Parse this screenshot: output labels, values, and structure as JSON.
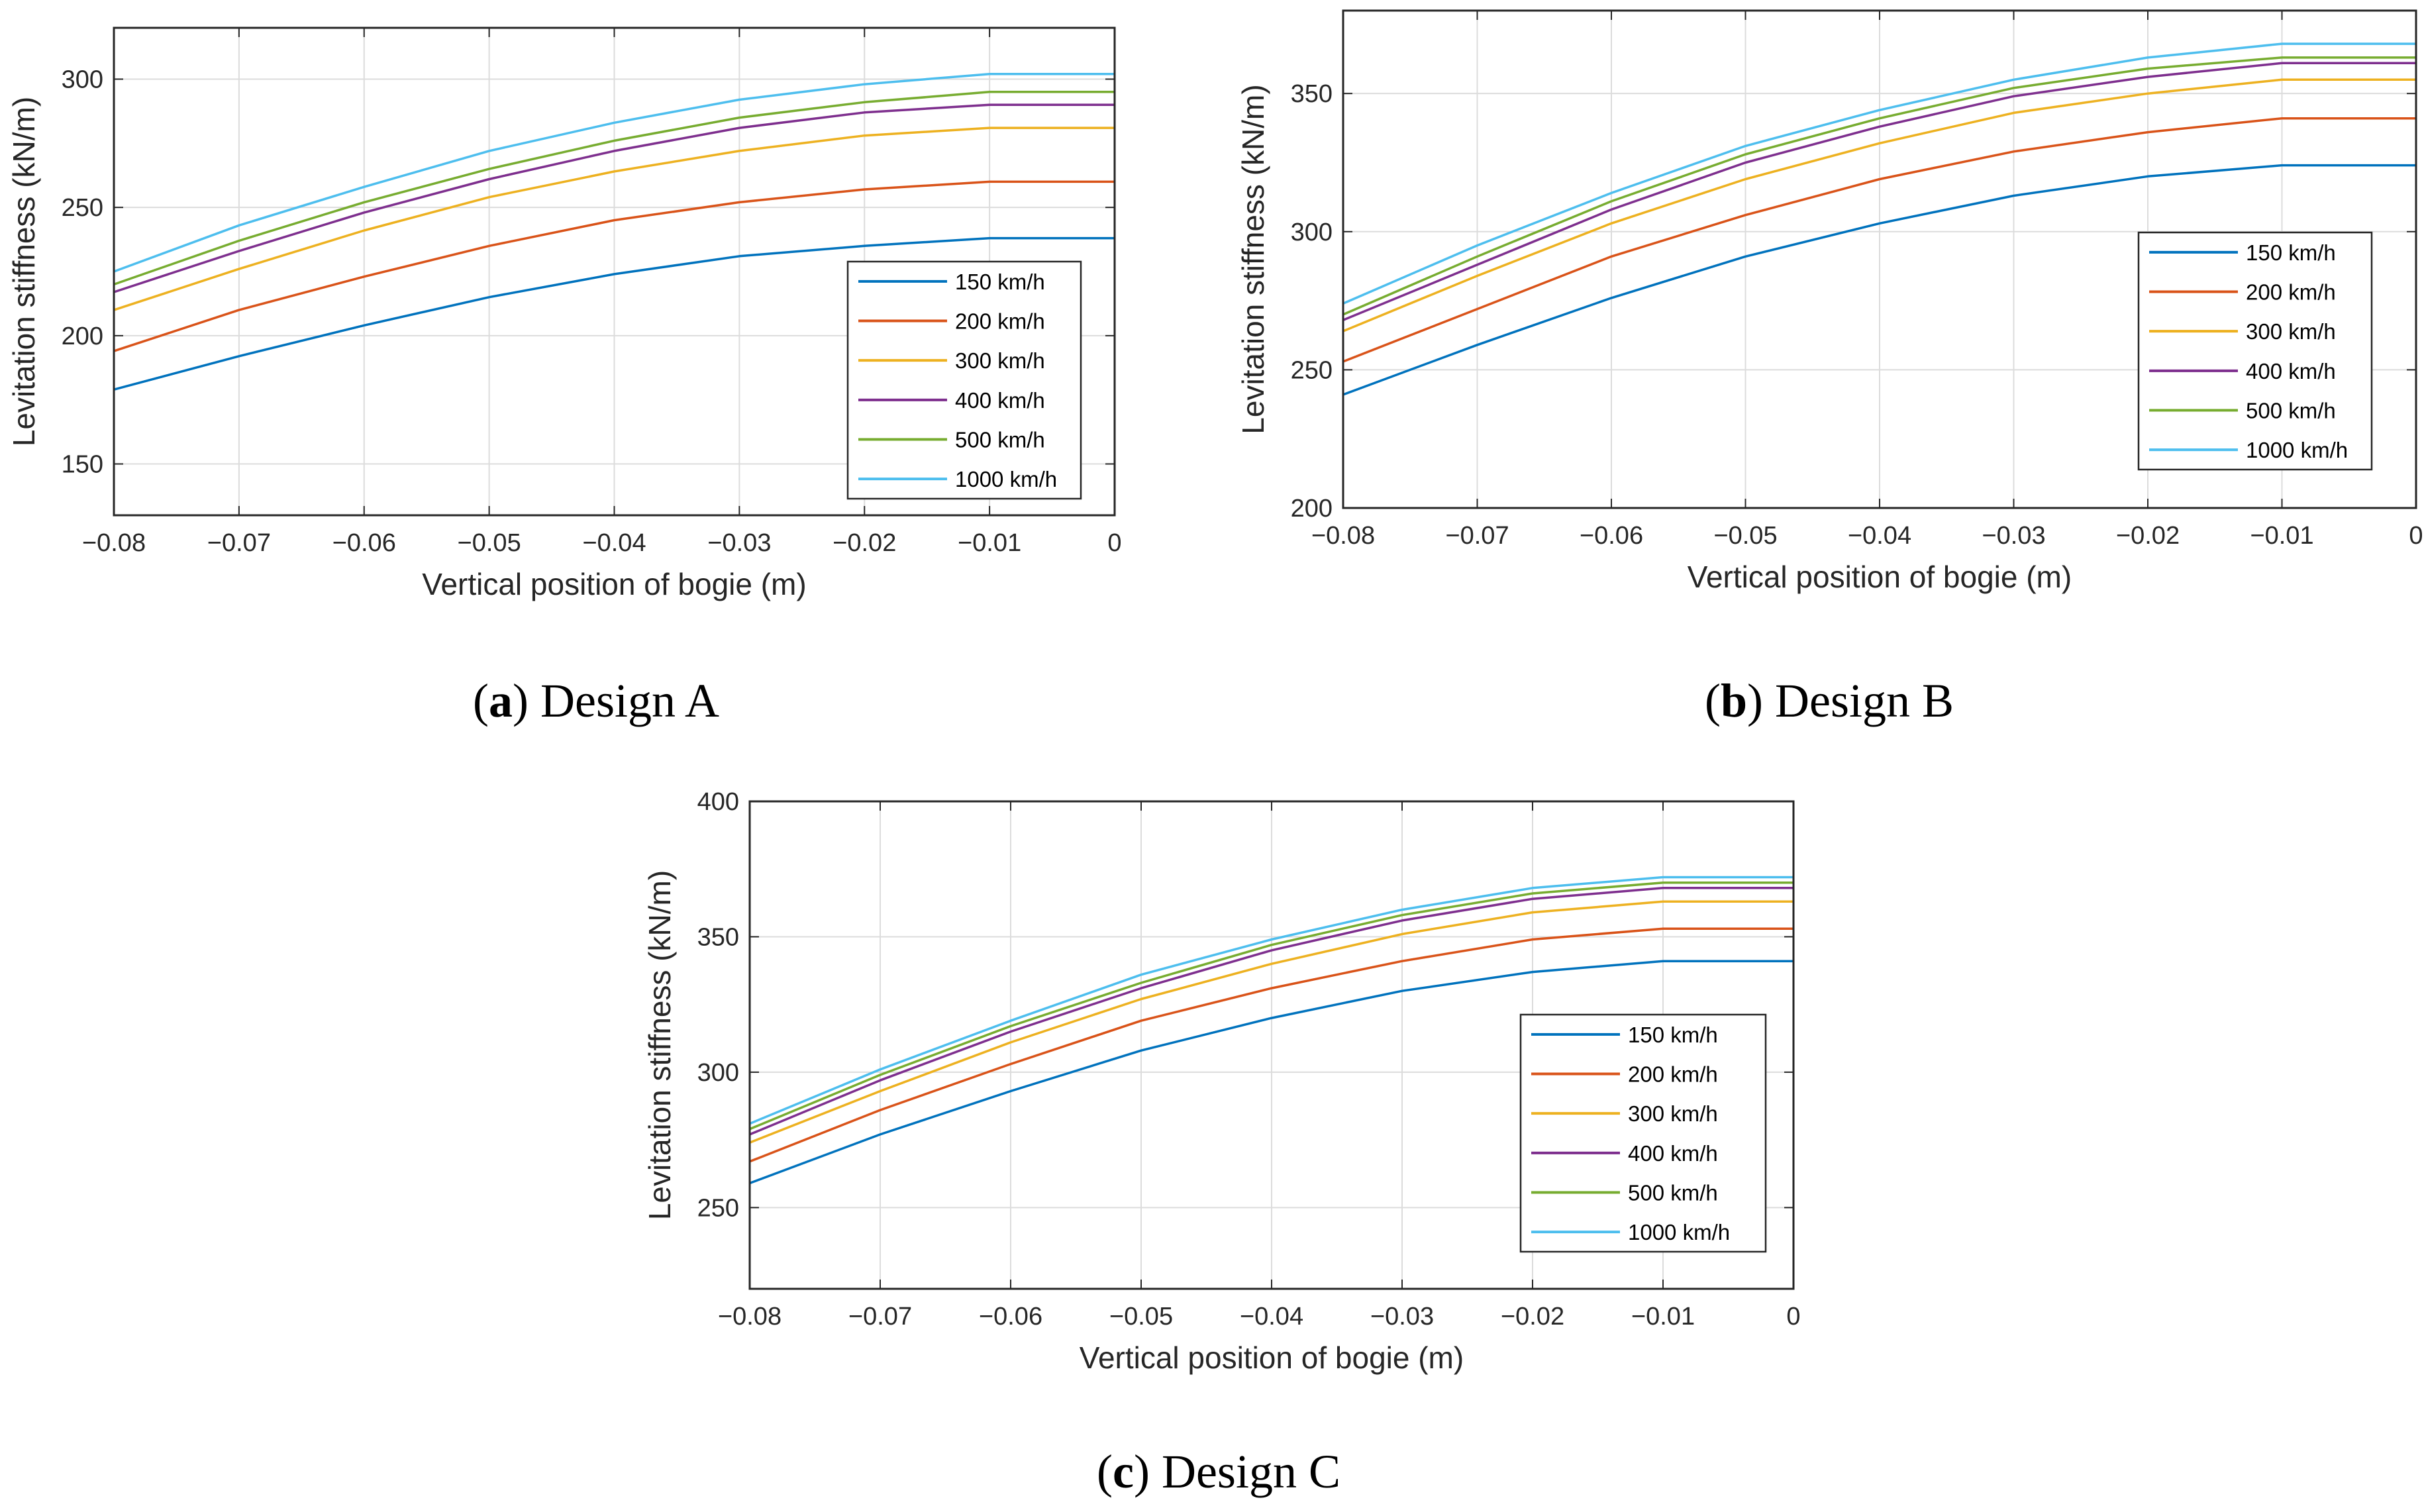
{
  "figure": {
    "captions": [
      {
        "letter": "a",
        "text": "Design A"
      },
      {
        "letter": "b",
        "text": "Design B"
      },
      {
        "letter": "c",
        "text": "Design C"
      }
    ]
  },
  "colors": {
    "150 km/h": "#0072BD",
    "200 km/h": "#D95319",
    "300 km/h": "#EDB120",
    "400 km/h": "#7E2F8E",
    "500 km/h": "#77AC30",
    "1000 km/h": "#4DBEEE",
    "grid": "#dcdcdc",
    "axis": "#262626"
  },
  "chart_data": [
    {
      "type": "line",
      "title": "",
      "caption": "(a) Design A",
      "xlabel": "Vertical position of bogie (m)",
      "ylabel": "Levitation stiffness (kN/m)",
      "xlim": [
        -0.08,
        0
      ],
      "ylim": [
        130,
        320
      ],
      "xticks": [
        -0.08,
        -0.07,
        -0.06,
        -0.05,
        -0.04,
        -0.03,
        -0.02,
        -0.01,
        0
      ],
      "xtick_labels": [
        "−0.08",
        "−0.07",
        "−0.06",
        "−0.05",
        "−0.04",
        "−0.03",
        "−0.02",
        "−0.01",
        "0"
      ],
      "yticks": [
        150,
        200,
        250,
        300
      ],
      "ytick_labels": [
        "150",
        "200",
        "250",
        "300"
      ],
      "grid": true,
      "legend_position": "bottom-right",
      "x": [
        -0.08,
        -0.07,
        -0.06,
        -0.05,
        -0.04,
        -0.03,
        -0.02,
        -0.01,
        0
      ],
      "series": [
        {
          "name": "150 km/h",
          "values": [
            179,
            192,
            204,
            215,
            224,
            231,
            235,
            238,
            238
          ]
        },
        {
          "name": "200 km/h",
          "values": [
            194,
            210,
            223,
            235,
            245,
            252,
            257,
            260,
            260
          ]
        },
        {
          "name": "300 km/h",
          "values": [
            210,
            226,
            241,
            254,
            264,
            272,
            278,
            281,
            281
          ]
        },
        {
          "name": "400 km/h",
          "values": [
            217,
            233,
            248,
            261,
            272,
            281,
            287,
            290,
            290
          ]
        },
        {
          "name": "500 km/h",
          "values": [
            220,
            237,
            252,
            265,
            276,
            285,
            291,
            295,
            295
          ]
        },
        {
          "name": "1000 km/h",
          "values": [
            225,
            243,
            258,
            272,
            283,
            292,
            298,
            302,
            302
          ]
        }
      ]
    },
    {
      "type": "line",
      "title": "",
      "caption": "(b) Design B",
      "xlabel": "Vertical position of bogie (m)",
      "ylabel": "Levitation stiffness (kN/m)",
      "xlim": [
        -0.08,
        0
      ],
      "ylim": [
        200,
        380
      ],
      "xticks": [
        -0.08,
        -0.07,
        -0.06,
        -0.05,
        -0.04,
        -0.03,
        -0.02,
        -0.01,
        0
      ],
      "xtick_labels": [
        "−0.08",
        "−0.07",
        "−0.06",
        "−0.05",
        "−0.04",
        "−0.03",
        "−0.02",
        "−0.01",
        "0"
      ],
      "yticks": [
        200,
        250,
        300,
        350
      ],
      "ytick_labels": [
        "200",
        "250",
        "300",
        "350"
      ],
      "grid": true,
      "legend_position": "bottom-right",
      "x": [
        -0.08,
        -0.07,
        -0.06,
        -0.05,
        -0.04,
        -0.03,
        -0.02,
        -0.01,
        0
      ],
      "series": [
        {
          "name": "150 km/h",
          "values": [
            241,
            259,
            276,
            291,
            303,
            313,
            320,
            324,
            324
          ]
        },
        {
          "name": "200 km/h",
          "values": [
            253,
            272,
            291,
            306,
            319,
            329,
            336,
            341,
            341
          ]
        },
        {
          "name": "300 km/h",
          "values": [
            264,
            284,
            303,
            319,
            332,
            343,
            350,
            355,
            355
          ]
        },
        {
          "name": "400 km/h",
          "values": [
            268,
            288,
            308,
            325,
            338,
            349,
            356,
            361,
            361
          ]
        },
        {
          "name": "500 km/h",
          "values": [
            270,
            291,
            311,
            328,
            341,
            352,
            359,
            363,
            363
          ]
        },
        {
          "name": "1000 km/h",
          "values": [
            274,
            295,
            314,
            331,
            344,
            355,
            363,
            368,
            368
          ]
        }
      ]
    },
    {
      "type": "line",
      "title": "",
      "caption": "(c) Design C",
      "xlabel": "Vertical position of bogie (m)",
      "ylabel": "Levitation stiffness (kN/m)",
      "xlim": [
        -0.08,
        0
      ],
      "ylim": [
        220,
        400
      ],
      "xticks": [
        -0.08,
        -0.07,
        -0.06,
        -0.05,
        -0.04,
        -0.03,
        -0.02,
        -0.01,
        0
      ],
      "xtick_labels": [
        "−0.08",
        "−0.07",
        "−0.06",
        "−0.05",
        "−0.04",
        "−0.03",
        "−0.02",
        "−0.01",
        "0"
      ],
      "yticks": [
        250,
        300,
        350,
        400
      ],
      "ytick_labels": [
        "250",
        "300",
        "350",
        "400"
      ],
      "grid": true,
      "legend_position": "bottom-right",
      "x": [
        -0.08,
        -0.07,
        -0.06,
        -0.05,
        -0.04,
        -0.03,
        -0.02,
        -0.01,
        0
      ],
      "series": [
        {
          "name": "150 km/h",
          "values": [
            259,
            277,
            293,
            308,
            320,
            330,
            337,
            341,
            341
          ]
        },
        {
          "name": "200 km/h",
          "values": [
            267,
            286,
            303,
            319,
            331,
            341,
            349,
            353,
            353
          ]
        },
        {
          "name": "300 km/h",
          "values": [
            274,
            293,
            311,
            327,
            340,
            351,
            359,
            363,
            363
          ]
        },
        {
          "name": "400 km/h",
          "values": [
            277,
            297,
            315,
            331,
            345,
            356,
            364,
            368,
            368
          ]
        },
        {
          "name": "500 km/h",
          "values": [
            279,
            299,
            317,
            333,
            347,
            358,
            366,
            370,
            370
          ]
        },
        {
          "name": "1000 km/h",
          "values": [
            281,
            301,
            319,
            336,
            349,
            360,
            368,
            372,
            372
          ]
        }
      ]
    }
  ]
}
